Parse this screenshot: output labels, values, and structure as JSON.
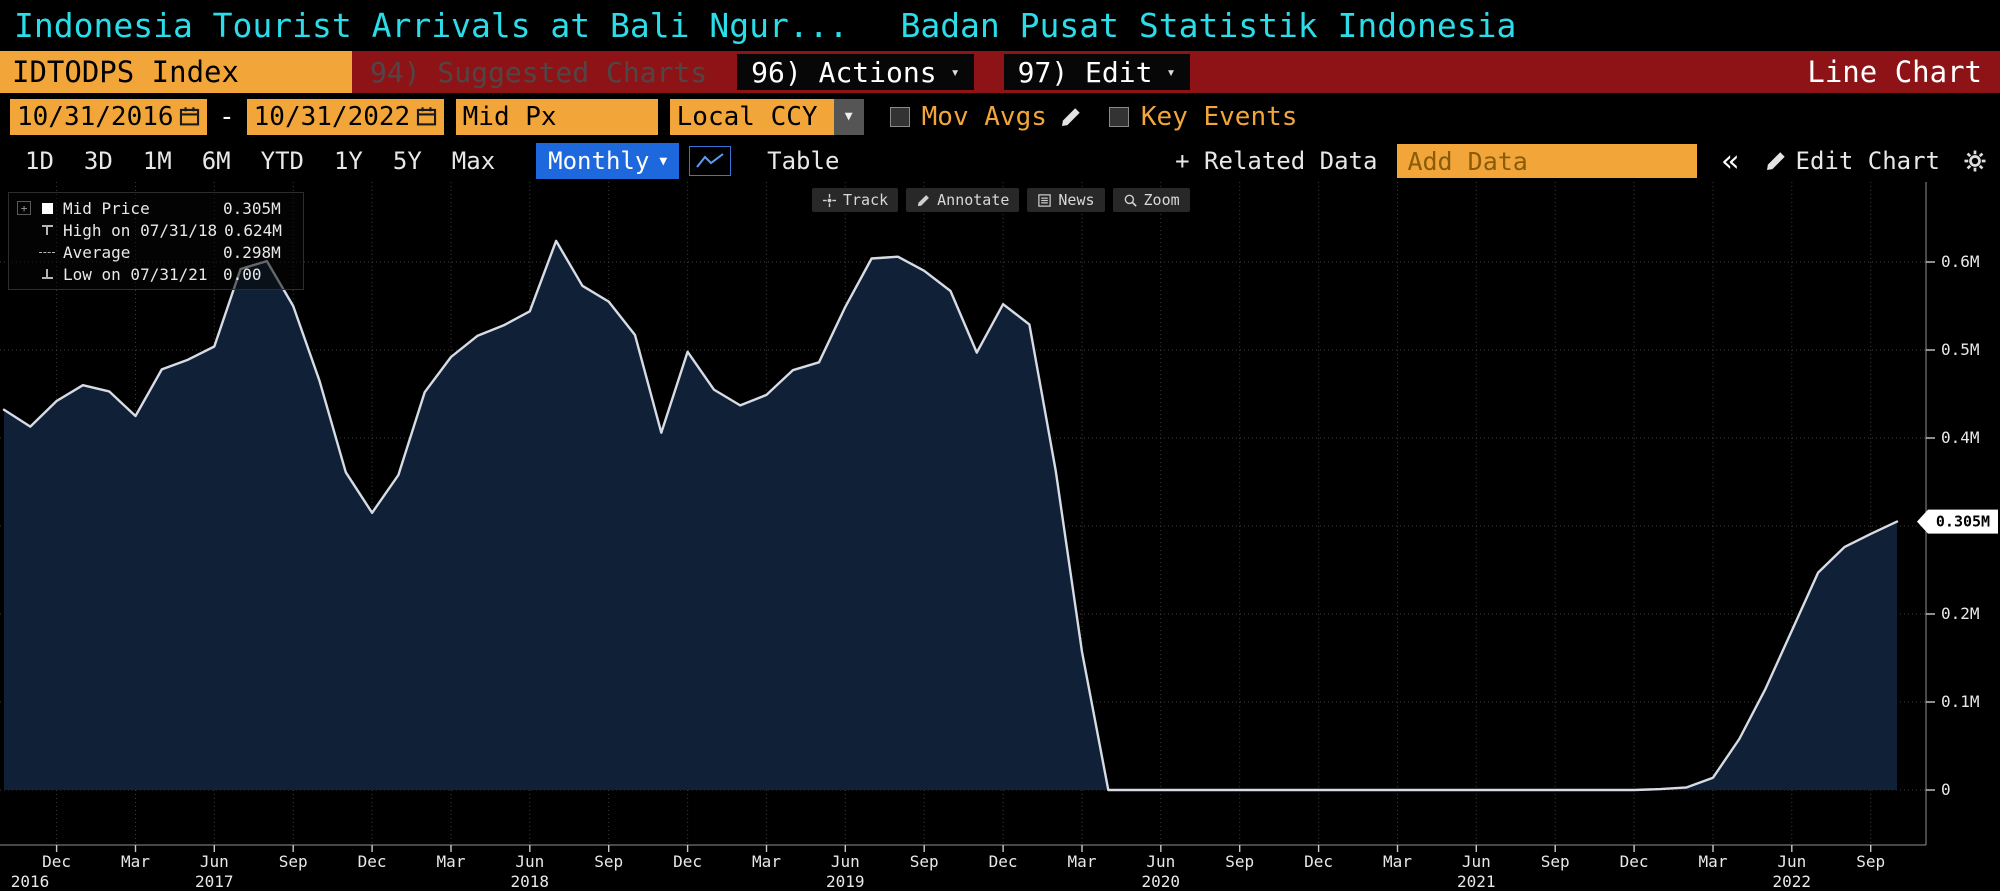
{
  "colors": {
    "amber": "#f2a63a",
    "title_cyan": "#2bdde8",
    "ribbon_red": "#8e1316",
    "accent_blue": "#1e68dd",
    "chart_fill": "#0f2037",
    "chart_line": "#d7dbe4"
  },
  "icons": {
    "chevron_down": "▾",
    "dropdown_arrow": "▼",
    "collapse": "«",
    "grip": "+"
  },
  "title_bar": {
    "security_title": "Indonesia Tourist Arrivals at Bali Ngur...",
    "source": "Badan Pusat Statistik Indonesia"
  },
  "ribbon": {
    "security": "IDTODPS Index",
    "suggested_charts": "94) Suggested Charts",
    "actions": "96) Actions",
    "edit": "97) Edit",
    "view_label": "Line Chart"
  },
  "settings": {
    "date_from": "10/31/2016",
    "date_separator": "-",
    "date_to": "10/31/2022",
    "price_field": "Mid Px",
    "currency": "Local CCY",
    "mov_avgs": "Mov Avgs",
    "key_events": "Key Events"
  },
  "period_bar": {
    "ranges": [
      "1D",
      "3D",
      "1M",
      "6M",
      "YTD",
      "1Y",
      "5Y",
      "Max"
    ],
    "frequency": "Monthly",
    "table": "Table",
    "related_data": "+ Related Data",
    "add_data_placeholder": "Add Data",
    "edit_chart": "Edit Chart"
  },
  "chart_toolbar": {
    "track": "Track",
    "annotate": "Annotate",
    "news": "News",
    "zoom": "Zoom"
  },
  "legend": {
    "rows": [
      {
        "marker": "square",
        "label": "Mid Price",
        "value": "0.305M"
      },
      {
        "marker": "high",
        "label": "High on 07/31/18",
        "value": "0.624M"
      },
      {
        "marker": "average",
        "label": "Average",
        "value": "0.298M"
      },
      {
        "marker": "low",
        "label": "Low on 07/31/21",
        "value": "0.00"
      }
    ]
  },
  "chart_data": {
    "type": "area",
    "title": "Indonesia Tourist Arrivals at Bali Ngurah Rai (IDTODPS Index)",
    "unit": "millions of arrivals",
    "frequency": "monthly",
    "x_start": "Oct 2016",
    "x_end": "Oct 2022",
    "ylim": [
      0,
      0.69
    ],
    "grid": true,
    "values": [
      0.432,
      0.413,
      0.442,
      0.46,
      0.453,
      0.425,
      0.478,
      0.489,
      0.504,
      0.592,
      0.601,
      0.55,
      0.465,
      0.361,
      0.315,
      0.358,
      0.452,
      0.492,
      0.516,
      0.528,
      0.544,
      0.624,
      0.573,
      0.555,
      0.517,
      0.406,
      0.498,
      0.455,
      0.437,
      0.449,
      0.477,
      0.486,
      0.549,
      0.604,
      0.606,
      0.59,
      0.567,
      0.497,
      0.552,
      0.529,
      0.363,
      0.157,
      0,
      0,
      0,
      0,
      0,
      0,
      0,
      0,
      0,
      0,
      0,
      0,
      0,
      0,
      0,
      0,
      0,
      0,
      0,
      0,
      0,
      0.001,
      0.003,
      0.014,
      0.058,
      0.115,
      0.181,
      0.247,
      0.276,
      0.291,
      0.305
    ],
    "yticks": [
      {
        "value": 0,
        "label": "0"
      },
      {
        "value": 0.1,
        "label": "0.1M"
      },
      {
        "value": 0.2,
        "label": "0.2M"
      },
      {
        "value": 0.3,
        "label": "0.3M",
        "hidden": true
      },
      {
        "value": 0.4,
        "label": "0.4M"
      },
      {
        "value": 0.5,
        "label": "0.5M"
      },
      {
        "value": 0.6,
        "label": "0.6M"
      }
    ],
    "xticks": [
      {
        "index": 2,
        "label": "Dec"
      },
      {
        "index": 5,
        "label": "Mar"
      },
      {
        "index": 8,
        "label": "Jun"
      },
      {
        "index": 11,
        "label": "Sep"
      },
      {
        "index": 14,
        "label": "Dec"
      },
      {
        "index": 17,
        "label": "Mar"
      },
      {
        "index": 20,
        "label": "Jun"
      },
      {
        "index": 23,
        "label": "Sep"
      },
      {
        "index": 26,
        "label": "Dec"
      },
      {
        "index": 29,
        "label": "Mar"
      },
      {
        "index": 32,
        "label": "Jun"
      },
      {
        "index": 35,
        "label": "Sep"
      },
      {
        "index": 38,
        "label": "Dec"
      },
      {
        "index": 41,
        "label": "Mar"
      },
      {
        "index": 44,
        "label": "Jun"
      },
      {
        "index": 47,
        "label": "Sep"
      },
      {
        "index": 50,
        "label": "Dec"
      },
      {
        "index": 53,
        "label": "Mar"
      },
      {
        "index": 56,
        "label": "Jun"
      },
      {
        "index": 59,
        "label": "Sep"
      },
      {
        "index": 62,
        "label": "Dec"
      },
      {
        "index": 65,
        "label": "Mar"
      },
      {
        "index": 68,
        "label": "Jun"
      },
      {
        "index": 71,
        "label": "Sep"
      }
    ],
    "year_labels": [
      {
        "index": 0,
        "label": "2016"
      },
      {
        "index": 8,
        "label": "2017"
      },
      {
        "index": 20,
        "label": "2018"
      },
      {
        "index": 32,
        "label": "2019"
      },
      {
        "index": 44,
        "label": "2020"
      },
      {
        "index": 56,
        "label": "2021"
      },
      {
        "index": 68,
        "label": "2022"
      }
    ],
    "last_value_label": "0.305M",
    "high": {
      "date": "07/31/18",
      "value": 0.624
    },
    "low": {
      "date": "07/31/21",
      "value": 0.0
    },
    "average": 0.298
  }
}
